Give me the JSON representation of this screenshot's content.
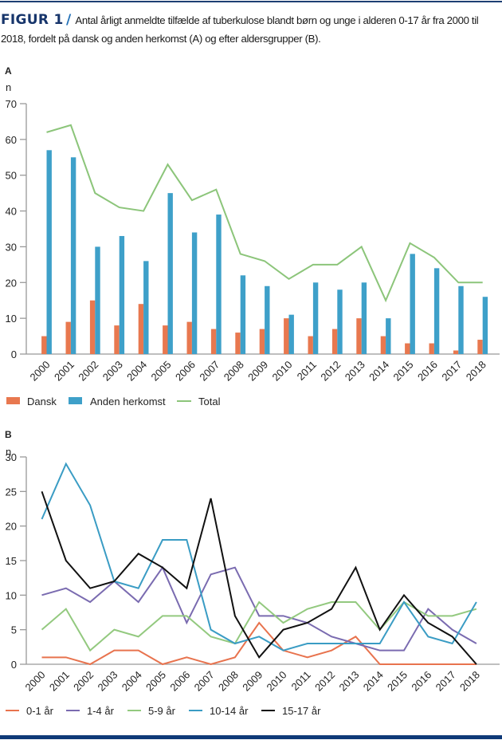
{
  "caption": {
    "figure_label": "FIGUR 1",
    "slash": "/",
    "text": "Antal årligt anmeldte tilfælde af tuberkulose blandt børn og unge i alderen 0-17 år fra 2000 til 2018, fordelt på dansk og anden herkomst (A) og efter aldersgrupper (B)."
  },
  "colors": {
    "dansk": "#e8784f",
    "anden": "#3ea0c9",
    "total": "#8cc57a",
    "age_0_1": "#e8734e",
    "age_1_4": "#7a6bb0",
    "age_5_9": "#93c97f",
    "age_10_14": "#3a9cc4",
    "age_15_17": "#111111",
    "axis": "#999999",
    "frame": "#0f3a78"
  },
  "chart_data": [
    {
      "type": "bar",
      "panel": "A",
      "title": "",
      "ylabel": "n",
      "xlabel": "",
      "ylim": [
        0,
        70
      ],
      "yticks": [
        0,
        10,
        20,
        30,
        40,
        50,
        60,
        70
      ],
      "grid": false,
      "legend_position": "bottom-left",
      "categories": [
        "2000",
        "2001",
        "2002",
        "2003",
        "2004",
        "2005",
        "2006",
        "2007",
        "2008",
        "2009",
        "2010",
        "2011",
        "2012",
        "2013",
        "2014",
        "2015",
        "2016",
        "2017",
        "2018"
      ],
      "series": [
        {
          "name": "Dansk",
          "kind": "bar",
          "color_key": "dansk",
          "values": [
            5,
            9,
            15,
            8,
            14,
            8,
            9,
            7,
            6,
            7,
            10,
            5,
            7,
            10,
            5,
            3,
            3,
            1,
            4
          ]
        },
        {
          "name": "Anden herkomst",
          "kind": "bar",
          "color_key": "anden",
          "values": [
            57,
            55,
            30,
            33,
            26,
            45,
            34,
            39,
            22,
            19,
            11,
            20,
            18,
            20,
            10,
            28,
            24,
            19,
            16
          ]
        },
        {
          "name": "Total",
          "kind": "line",
          "color_key": "total",
          "values": [
            62,
            64,
            45,
            41,
            40,
            53,
            43,
            46,
            28,
            26,
            21,
            25,
            25,
            30,
            15,
            31,
            27,
            20,
            20
          ]
        }
      ]
    },
    {
      "type": "line",
      "panel": "B",
      "title": "",
      "ylabel": "n",
      "xlabel": "",
      "ylim": [
        0,
        30
      ],
      "yticks": [
        0,
        5,
        10,
        15,
        20,
        25,
        30
      ],
      "grid": false,
      "legend_position": "bottom-left",
      "categories": [
        "2000",
        "2001",
        "2002",
        "2003",
        "2004",
        "2005",
        "2006",
        "2007",
        "2008",
        "2009",
        "2010",
        "2011",
        "2012",
        "2013",
        "2014",
        "2015",
        "2016",
        "2017",
        "2018"
      ],
      "series": [
        {
          "name": "0-1 år",
          "color_key": "age_0_1",
          "values": [
            1,
            1,
            0,
            2,
            2,
            0,
            1,
            0,
            1,
            6,
            2,
            1,
            2,
            4,
            0,
            0,
            0,
            0,
            0
          ]
        },
        {
          "name": "1-4 år",
          "color_key": "age_1_4",
          "values": [
            10,
            11,
            9,
            12,
            9,
            14,
            6,
            13,
            14,
            7,
            7,
            6,
            4,
            3,
            2,
            2,
            8,
            5,
            3
          ]
        },
        {
          "name": "5-9 år",
          "color_key": "age_5_9",
          "values": [
            5,
            8,
            2,
            5,
            4,
            7,
            7,
            4,
            3,
            9,
            6,
            8,
            9,
            9,
            5,
            9,
            7,
            7,
            8
          ]
        },
        {
          "name": "10-14 år",
          "color_key": "age_10_14",
          "values": [
            21,
            29,
            23,
            12,
            11,
            18,
            18,
            5,
            3,
            4,
            2,
            3,
            3,
            3,
            3,
            9,
            4,
            3,
            9
          ]
        },
        {
          "name": "15-17 år",
          "color_key": "age_15_17",
          "values": [
            25,
            15,
            11,
            12,
            16,
            14,
            11,
            24,
            7,
            1,
            5,
            6,
            8,
            14,
            5,
            10,
            6,
            4,
            0
          ]
        }
      ]
    }
  ]
}
